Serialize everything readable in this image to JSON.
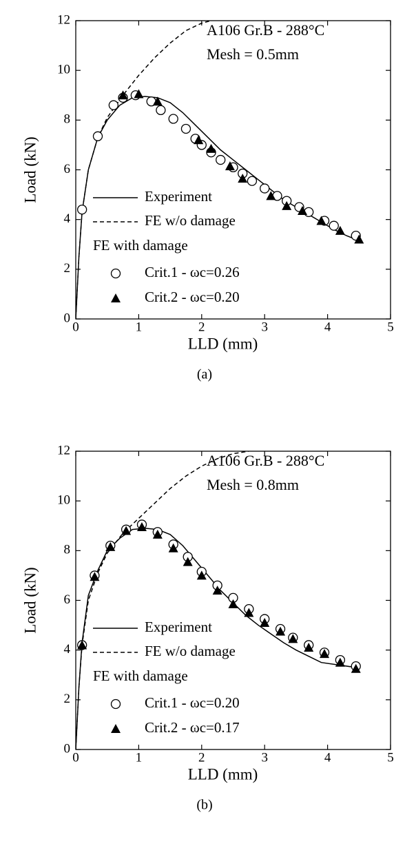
{
  "chart_data": [
    {
      "type": "line",
      "caption": "(a)",
      "xlabel": "LLD (mm)",
      "ylabel": "Load (kN)",
      "annotations": [
        "A106 Gr.B - 288°C",
        "Mesh = 0.5mm"
      ],
      "legend_subtitle": "FE with damage",
      "xlim": [
        0,
        5
      ],
      "xticks": [
        0,
        1,
        2,
        3,
        4,
        5
      ],
      "ylim": [
        0,
        12
      ],
      "yticks": [
        0,
        2,
        4,
        6,
        8,
        10,
        12
      ],
      "series": [
        {
          "name": "Experiment",
          "color": "#000000",
          "style": "solid",
          "marker": "none",
          "x": [
            0,
            0.05,
            0.1,
            0.2,
            0.35,
            0.5,
            0.7,
            0.9,
            1.1,
            1.3,
            1.5,
            1.7,
            1.9,
            2.1,
            2.3,
            2.5,
            2.7,
            2.9,
            3.1,
            3.3,
            3.5,
            3.7,
            3.9,
            4.1,
            4.3,
            4.5
          ],
          "values": [
            0,
            2.5,
            4.3,
            6.0,
            7.3,
            8.0,
            8.6,
            8.9,
            8.95,
            8.9,
            8.7,
            8.3,
            7.8,
            7.3,
            6.8,
            6.4,
            6.0,
            5.6,
            5.2,
            4.8,
            4.5,
            4.2,
            3.9,
            3.6,
            3.35,
            3.15
          ]
        },
        {
          "name": "FE w/o damage",
          "color": "#000000",
          "style": "dashed",
          "marker": "none",
          "x": [
            0,
            0.05,
            0.1,
            0.2,
            0.35,
            0.5,
            0.75,
            1.0,
            1.25,
            1.5,
            1.75,
            2.0,
            2.15
          ],
          "values": [
            0,
            2.5,
            4.3,
            6.0,
            7.3,
            8.1,
            9.0,
            9.8,
            10.5,
            11.1,
            11.6,
            11.9,
            12
          ]
        },
        {
          "name": "Crit.1 - ωc=0.26",
          "color": "#000000",
          "style": "none",
          "marker": "circle",
          "x": [
            0.1,
            0.35,
            0.6,
            0.75,
            0.95,
            1.2,
            1.35,
            1.55,
            1.75,
            1.9,
            2.0,
            2.15,
            2.3,
            2.5,
            2.65,
            2.8,
            3.0,
            3.2,
            3.35,
            3.55,
            3.7,
            3.95,
            4.1,
            4.45
          ],
          "values": [
            4.4,
            7.35,
            8.6,
            8.9,
            9.0,
            8.75,
            8.4,
            8.05,
            7.65,
            7.25,
            7.0,
            6.7,
            6.4,
            6.1,
            5.85,
            5.55,
            5.25,
            4.95,
            4.75,
            4.5,
            4.3,
            3.95,
            3.75,
            3.35
          ]
        },
        {
          "name": "Crit.2 - ωc=0.20",
          "color": "#000000",
          "style": "none",
          "marker": "triangle",
          "x": [
            0.75,
            1.0,
            1.3,
            1.95,
            2.15,
            2.45,
            2.65,
            3.1,
            3.35,
            3.6,
            3.9,
            4.2,
            4.5
          ],
          "values": [
            9.0,
            9.05,
            8.75,
            7.2,
            6.85,
            6.15,
            5.65,
            4.95,
            4.55,
            4.35,
            3.95,
            3.55,
            3.2
          ]
        }
      ]
    },
    {
      "type": "line",
      "caption": "(b)",
      "xlabel": "LLD (mm)",
      "ylabel": "Load (kN)",
      "annotations": [
        "A106 Gr.B - 288°C",
        "Mesh = 0.8mm"
      ],
      "legend_subtitle": "FE with damage",
      "xlim": [
        0,
        5
      ],
      "xticks": [
        0,
        1,
        2,
        3,
        4,
        5
      ],
      "ylim": [
        0,
        12
      ],
      "yticks": [
        0,
        2,
        4,
        6,
        8,
        10,
        12
      ],
      "series": [
        {
          "name": "Experiment",
          "color": "#000000",
          "style": "solid",
          "marker": "none",
          "x": [
            0,
            0.05,
            0.1,
            0.2,
            0.35,
            0.5,
            0.7,
            0.9,
            1.1,
            1.3,
            1.5,
            1.7,
            1.9,
            2.1,
            2.3,
            2.5,
            2.7,
            2.9,
            3.1,
            3.3,
            3.5,
            3.7,
            3.9,
            4.45
          ],
          "values": [
            0,
            2.5,
            4.3,
            6.2,
            7.2,
            8.0,
            8.5,
            8.85,
            8.9,
            8.85,
            8.65,
            8.2,
            7.6,
            7.0,
            6.4,
            5.9,
            5.4,
            5.0,
            4.65,
            4.3,
            4.0,
            3.75,
            3.5,
            3.3
          ]
        },
        {
          "name": "FE w/o damage",
          "color": "#000000",
          "style": "dashed",
          "marker": "none",
          "x": [
            0,
            0.05,
            0.1,
            0.2,
            0.35,
            0.5,
            0.75,
            1.0,
            1.25,
            1.5,
            1.75,
            2.0,
            2.25,
            2.5,
            2.75
          ],
          "values": [
            0,
            2.5,
            4.2,
            6.0,
            7.1,
            7.9,
            8.7,
            9.3,
            9.9,
            10.5,
            11.0,
            11.4,
            11.7,
            11.9,
            12
          ]
        },
        {
          "name": "Crit.1 - ωc=0.20",
          "color": "#000000",
          "style": "none",
          "marker": "circle",
          "x": [
            0.1,
            0.3,
            0.55,
            0.8,
            1.05,
            1.3,
            1.55,
            1.78,
            2.0,
            2.25,
            2.5,
            2.75,
            3.0,
            3.25,
            3.45,
            3.7,
            3.95,
            4.2,
            4.45
          ],
          "values": [
            4.2,
            7.0,
            8.2,
            8.85,
            9.05,
            8.75,
            8.25,
            7.75,
            7.15,
            6.6,
            6.1,
            5.65,
            5.25,
            4.85,
            4.5,
            4.2,
            3.9,
            3.6,
            3.35
          ]
        },
        {
          "name": "Crit.2 - ωc=0.17",
          "color": "#000000",
          "style": "none",
          "marker": "triangle",
          "x": [
            0.1,
            0.3,
            0.55,
            0.8,
            1.05,
            1.3,
            1.55,
            1.78,
            2.0,
            2.25,
            2.5,
            2.75,
            3.0,
            3.25,
            3.45,
            3.7,
            3.95,
            4.2,
            4.45
          ],
          "values": [
            4.2,
            6.95,
            8.15,
            8.8,
            8.95,
            8.65,
            8.1,
            7.55,
            7.0,
            6.4,
            5.85,
            5.5,
            5.1,
            4.75,
            4.45,
            4.1,
            3.85,
            3.5,
            3.25
          ]
        }
      ]
    }
  ]
}
